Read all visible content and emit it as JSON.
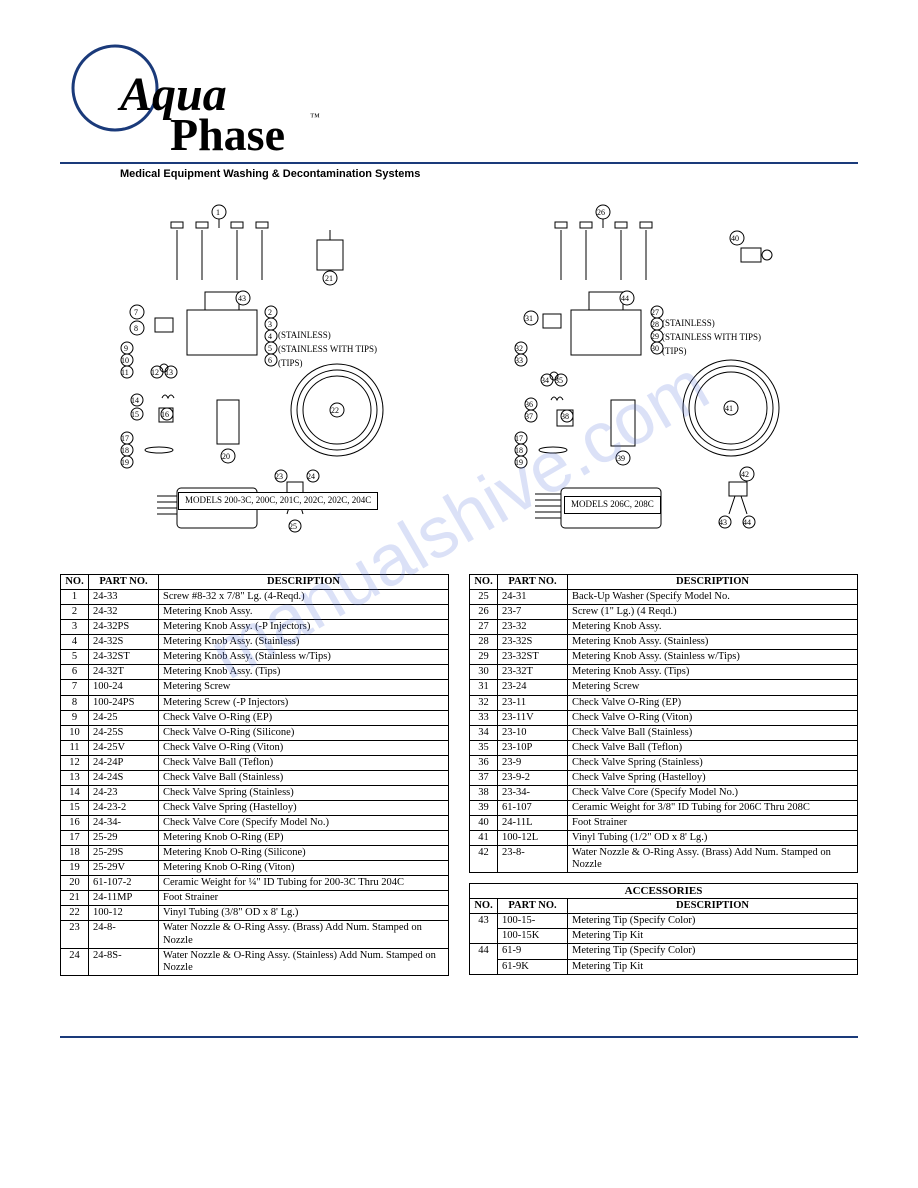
{
  "brand": {
    "name_line1": "Aqua",
    "name_line2": "Phase",
    "tm": "™",
    "tagline": "Medical Equipment Washing & Decontamination Systems"
  },
  "watermark": "manualshive.com",
  "diagram": {
    "left": {
      "labels": {
        "stainless": "(STAINLESS)",
        "stainless_tips": "(STAINLESS WITH TIPS)",
        "tips": "(TIPS)"
      },
      "models_box": "MODELS\n200-3C, 200C,\n201C, 202C,\n202C, 204C"
    },
    "right": {
      "labels": {
        "stainless": "(STAINLESS)",
        "stainless_tips": "(STAINLESS WITH TIPS)",
        "tips": "(TIPS)"
      },
      "models_box": "MODELS\n206C, 208C"
    }
  },
  "left_table": {
    "headers": {
      "no": "NO.",
      "pn": "PART NO.",
      "desc": "DESCRIPTION"
    },
    "rows": [
      {
        "no": "1",
        "pn": "24-33",
        "desc": "Screw #8-32 x 7/8\" Lg. (4-Reqd.)"
      },
      {
        "no": "2",
        "pn": "24-32",
        "desc": "Metering Knob Assy."
      },
      {
        "no": "3",
        "pn": "24-32PS",
        "desc": "Metering Knob Assy. (-P Injectors)"
      },
      {
        "no": "4",
        "pn": "24-32S",
        "desc": "Metering Knob Assy. (Stainless)"
      },
      {
        "no": "5",
        "pn": "24-32ST",
        "desc": "Metering Knob Assy. (Stainless w/Tips)"
      },
      {
        "no": "6",
        "pn": "24-32T",
        "desc": "Metering Knob Assy. (Tips)"
      },
      {
        "no": "7",
        "pn": "100-24",
        "desc": "Metering Screw"
      },
      {
        "no": "8",
        "pn": "100-24PS",
        "desc": "Metering Screw (-P Injectors)"
      },
      {
        "no": "9",
        "pn": "24-25",
        "desc": "Check Valve O-Ring (EP)"
      },
      {
        "no": "10",
        "pn": "24-25S",
        "desc": "Check Valve O-Ring (Silicone)"
      },
      {
        "no": "11",
        "pn": "24-25V",
        "desc": "Check Valve O-Ring (Viton)"
      },
      {
        "no": "12",
        "pn": "24-24P",
        "desc": "Check Valve Ball (Teflon)"
      },
      {
        "no": "13",
        "pn": "24-24S",
        "desc": "Check Valve Ball (Stainless)"
      },
      {
        "no": "14",
        "pn": "24-23",
        "desc": "Check Valve Spring (Stainless)"
      },
      {
        "no": "15",
        "pn": "24-23-2",
        "desc": "Check Valve Spring (Hastelloy)"
      },
      {
        "no": "16",
        "pn": "24-34-",
        "desc": "Check Valve Core (Specify Model No.)"
      },
      {
        "no": "17",
        "pn": "25-29",
        "desc": "Metering Knob O-Ring (EP)"
      },
      {
        "no": "18",
        "pn": "25-29S",
        "desc": "Metering Knob O-Ring (Silicone)"
      },
      {
        "no": "19",
        "pn": "25-29V",
        "desc": "Metering Knob O-Ring (Viton)"
      },
      {
        "no": "20",
        "pn": "61-107-2",
        "desc": "Ceramic Weight for ¼\" ID Tubing for 200-3C Thru 204C"
      },
      {
        "no": "21",
        "pn": "24-11MP",
        "desc": "Foot Strainer"
      },
      {
        "no": "22",
        "pn": "100-12",
        "desc": "Vinyl Tubing (3/8\" OD x 8' Lg.)"
      },
      {
        "no": "23",
        "pn": "24-8-",
        "desc": "Water Nozzle & O-Ring Assy. (Brass) Add Num. Stamped on Nozzle"
      },
      {
        "no": "24",
        "pn": "24-8S-",
        "desc": "Water Nozzle & O-Ring Assy. (Stainless) Add Num. Stamped on Nozzle"
      }
    ]
  },
  "right_table": {
    "headers": {
      "no": "NO.",
      "pn": "PART NO.",
      "desc": "DESCRIPTION"
    },
    "rows": [
      {
        "no": "25",
        "pn": "24-31",
        "desc": "Back-Up Washer (Specify Model No."
      },
      {
        "no": "26",
        "pn": "23-7",
        "desc": "Screw (1\" Lg.) (4 Reqd.)"
      },
      {
        "no": "27",
        "pn": "23-32",
        "desc": "Metering Knob Assy."
      },
      {
        "no": "28",
        "pn": "23-32S",
        "desc": "Metering Knob Assy. (Stainless)"
      },
      {
        "no": "29",
        "pn": "23-32ST",
        "desc": "Metering Knob Assy. (Stainless w/Tips)"
      },
      {
        "no": "30",
        "pn": "23-32T",
        "desc": "Metering Knob Assy. (Tips)"
      },
      {
        "no": "31",
        "pn": "23-24",
        "desc": "Metering Screw"
      },
      {
        "no": "32",
        "pn": "23-11",
        "desc": "Check Valve O-Ring (EP)"
      },
      {
        "no": "33",
        "pn": "23-11V",
        "desc": "Check Valve O-Ring (Viton)"
      },
      {
        "no": "34",
        "pn": "23-10",
        "desc": "Check Valve Ball (Stainless)"
      },
      {
        "no": "35",
        "pn": "23-10P",
        "desc": "Check Valve Ball (Teflon)"
      },
      {
        "no": "36",
        "pn": "23-9",
        "desc": "Check Valve Spring (Stainless)"
      },
      {
        "no": "37",
        "pn": "23-9-2",
        "desc": "Check Valve Spring (Hastelloy)"
      },
      {
        "no": "38",
        "pn": "23-34-",
        "desc": "Check Valve Core (Specify Model No.)"
      },
      {
        "no": "39",
        "pn": "61-107",
        "desc": "Ceramic Weight for 3/8\" ID Tubing for 206C Thru 208C"
      },
      {
        "no": "40",
        "pn": "24-11L",
        "desc": "Foot Strainer"
      },
      {
        "no": "41",
        "pn": "100-12L",
        "desc": "Vinyl Tubing (1/2\" OD x 8' Lg.)"
      },
      {
        "no": "42",
        "pn": "23-8-",
        "desc": "Water Nozzle & O-Ring Assy. (Brass) Add Num. Stamped on Nozzle"
      }
    ]
  },
  "accessories": {
    "title": "ACCESSORIES",
    "headers": {
      "no": "NO.",
      "pn": "PART NO.",
      "desc": "DESCRIPTION"
    },
    "rows": [
      {
        "no": "43",
        "pn": "100-15-",
        "desc": "Metering Tip (Specify Color)"
      },
      {
        "no": "",
        "pn": "100-15K",
        "desc": "Metering Tip Kit"
      },
      {
        "no": "44",
        "pn": "61-9",
        "desc": "Metering Tip (Specify Color)"
      },
      {
        "no": "",
        "pn": "61-9K",
        "desc": "Metering Tip Kit"
      }
    ]
  },
  "colors": {
    "rule": "#1a3a7a",
    "watermark": "rgba(90,120,220,0.22)"
  }
}
